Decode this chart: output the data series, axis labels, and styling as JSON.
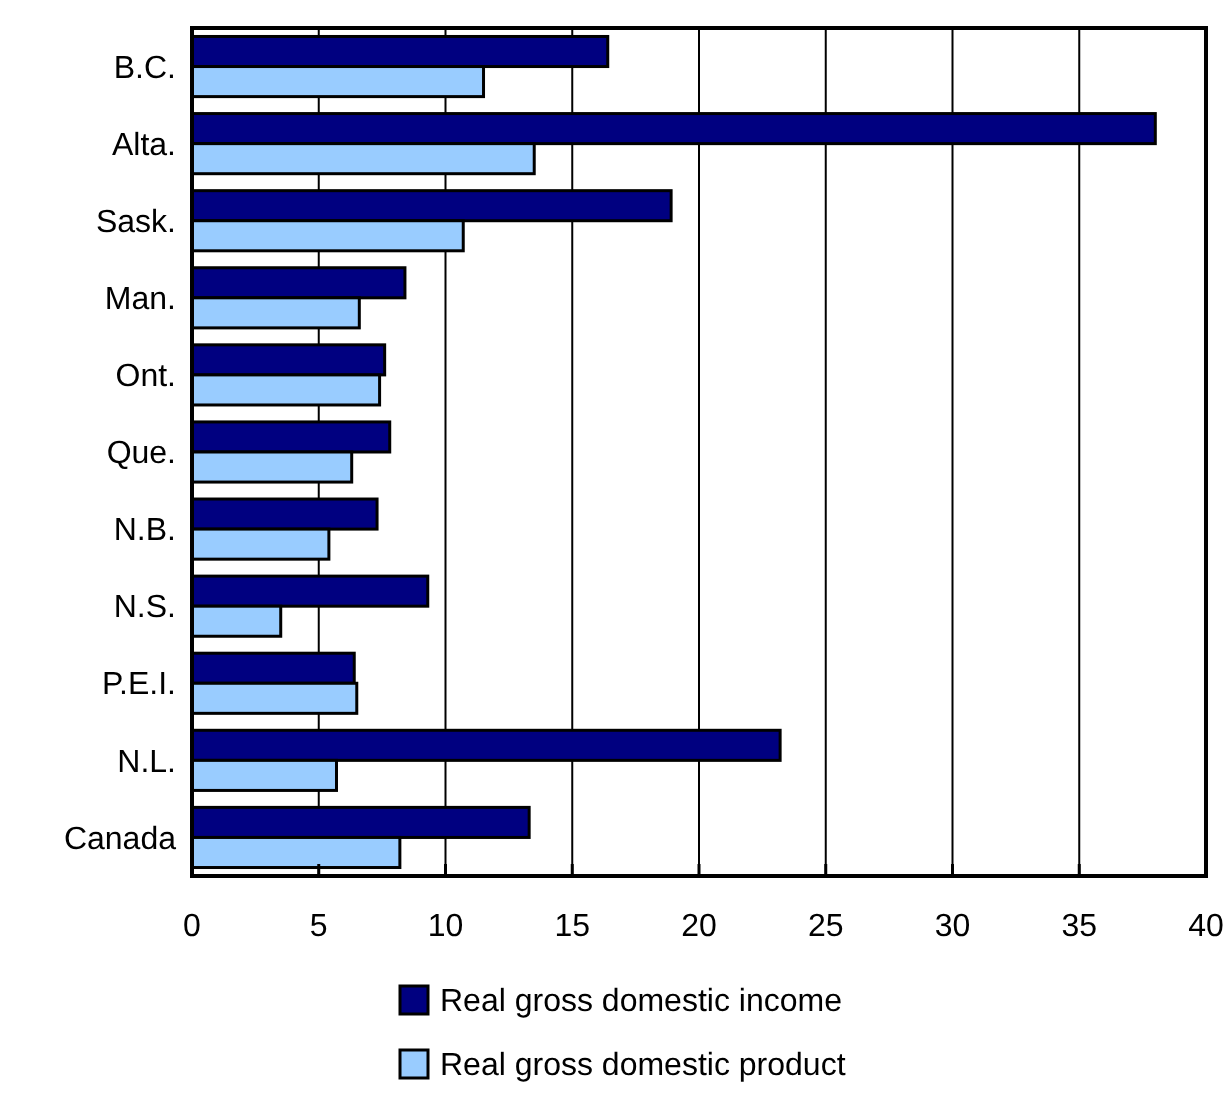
{
  "chart_data": {
    "type": "bar",
    "orientation": "horizontal",
    "categories": [
      "B.C.",
      "Alta.",
      "Sask.",
      "Man.",
      "Ont.",
      "Que.",
      "N.B.",
      "N.S.",
      "P.E.I.",
      "N.L.",
      "Canada"
    ],
    "series": [
      {
        "name": "Real gross domestic income",
        "color": "#000080",
        "values": [
          16.4,
          38.0,
          18.9,
          8.4,
          7.6,
          7.8,
          7.3,
          9.3,
          6.4,
          23.2,
          13.3
        ]
      },
      {
        "name": "Real gross domestic product",
        "color": "#99ccff",
        "values": [
          11.5,
          13.5,
          10.7,
          6.6,
          7.4,
          6.3,
          5.4,
          3.5,
          6.5,
          5.7,
          8.2
        ]
      }
    ],
    "xlim": [
      0,
      40
    ],
    "xticks": [
      0,
      5,
      10,
      15,
      20,
      25,
      30,
      35,
      40
    ],
    "grid": "x",
    "legend": "bottom"
  }
}
